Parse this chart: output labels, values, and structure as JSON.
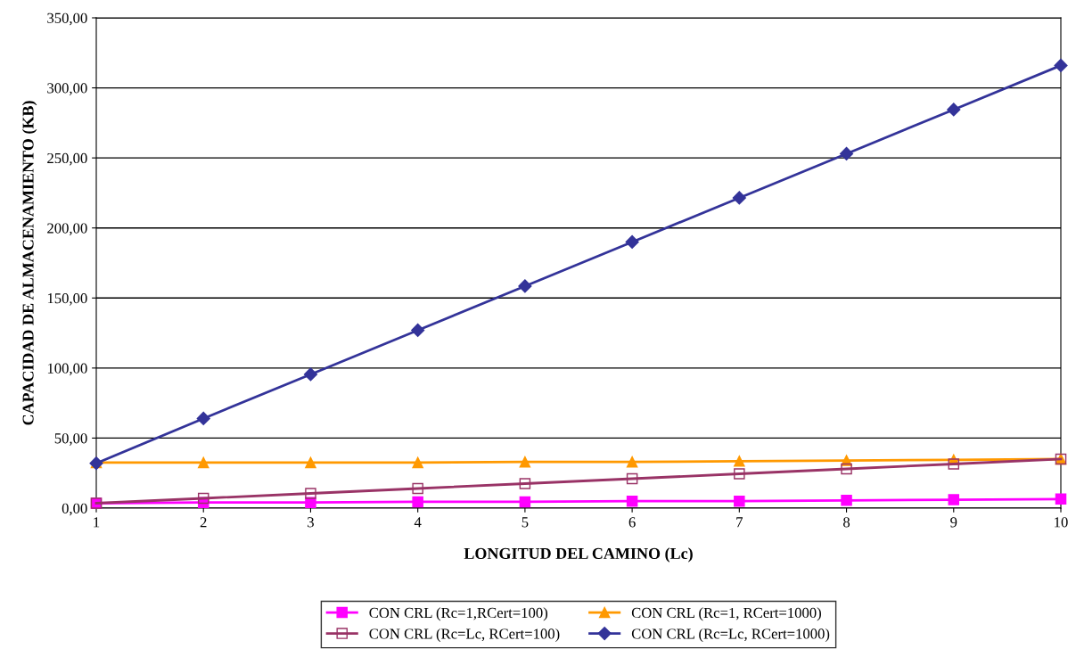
{
  "chart_data": {
    "type": "line",
    "xlabel": "LONGITUD DEL CAMINO (Lc)",
    "ylabel": "CAPACIDAD DE ALMACENAMIENTO (KB)",
    "x": [
      1,
      2,
      3,
      4,
      5,
      6,
      7,
      8,
      9,
      10
    ],
    "series": [
      {
        "name": "CON CRL (Rc=1,RCert=100)",
        "color": "#ff00ff",
        "marker": "square",
        "values": [
          3.5,
          4,
          4,
          4.5,
          4.5,
          5,
          5,
          5.5,
          6,
          6.5
        ]
      },
      {
        "name": "CON CRL (Rc=1, RCert=1000)",
        "color": "#ff9900",
        "marker": "triangle",
        "values": [
          32.5,
          32.5,
          32.5,
          32.5,
          33,
          33,
          33.5,
          34,
          34.5,
          35
        ]
      },
      {
        "name": "CON CRL (Rc=Lc, RCert=100)",
        "color": "#993366",
        "marker": "square",
        "values": [
          3.5,
          7,
          10.5,
          14,
          17.5,
          21,
          24.5,
          28,
          31.5,
          35
        ]
      },
      {
        "name": "CON CRL (Rc=Lc, RCert=1000)",
        "color": "#333399",
        "marker": "diamond",
        "values": [
          32,
          64,
          95.5,
          127,
          158.5,
          190,
          221.5,
          253,
          284.5,
          316
        ]
      }
    ],
    "xlim": [
      1,
      10
    ],
    "xticks": [
      1,
      2,
      3,
      4,
      5,
      6,
      7,
      8,
      9,
      10
    ],
    "ylim": [
      0,
      350
    ],
    "yticks": [
      {
        "value": 0,
        "label": "0,00"
      },
      {
        "value": 50,
        "label": "50,00"
      },
      {
        "value": 100,
        "label": "100,00"
      },
      {
        "value": 150,
        "label": "150,00"
      },
      {
        "value": 200,
        "label": "200,00"
      },
      {
        "value": 250,
        "label": "250,00"
      },
      {
        "value": 300,
        "label": "300,00"
      },
      {
        "value": 350,
        "label": "350,00"
      }
    ],
    "grid": "y",
    "legend": "bottom"
  }
}
